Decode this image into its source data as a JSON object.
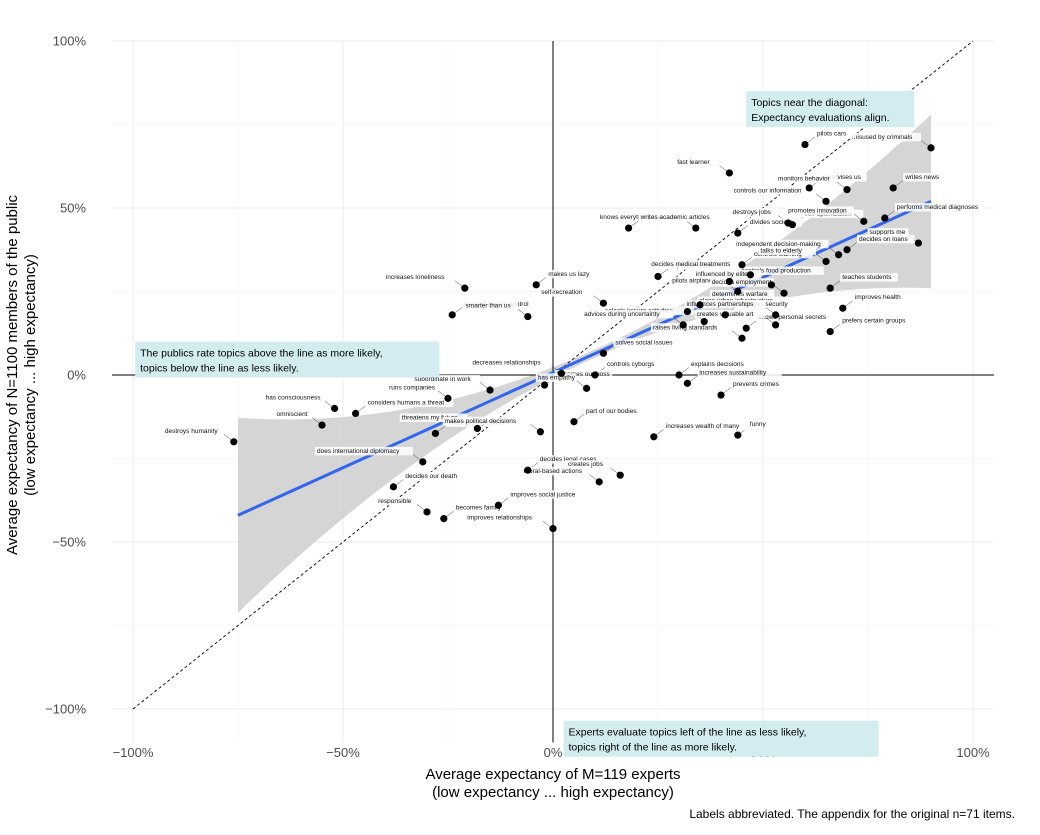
{
  "chart_data": {
    "type": "scatter",
    "xlabel": "Average expectancy of M=119 experts",
    "xlabel2": "(low expectancy ... high expectancy)",
    "ylabel": "Average expectancy of N=1100 members of the public",
    "ylabel2": "(low expectancy ... high expectancy)",
    "xlim": [
      -1.05,
      1.05
    ],
    "ylim": [
      -1.1,
      1.0
    ],
    "x_ticks": [
      {
        "v": -1.0,
        "label": "−100%"
      },
      {
        "v": -0.5,
        "label": "−50%"
      },
      {
        "v": 0.0,
        "label": "0%"
      },
      {
        "v": 0.5,
        "label": "50%"
      },
      {
        "v": 1.0,
        "label": "100%"
      }
    ],
    "y_ticks": [
      {
        "v": 1.0,
        "label": "100%"
      },
      {
        "v": 0.5,
        "label": "50%"
      },
      {
        "v": 0.0,
        "label": "0%"
      },
      {
        "v": -0.5,
        "label": "−50%"
      },
      {
        "v": -1.0,
        "label": "−100%"
      }
    ],
    "grid": true,
    "regression": {
      "x": [
        -0.75,
        0.9
      ],
      "y": [
        -0.42,
        0.52
      ],
      "color": "#3366ee",
      "band_color": "#d3d3d3"
    },
    "diagonal": {
      "from": [
        -1.0,
        -1.0
      ],
      "to": [
        1.0,
        1.0
      ]
    },
    "annotations": [
      {
        "x": 0.46,
        "y": 0.85,
        "lines": [
          "Topics near the diagonal:",
          "Expectancy evaluations align."
        ]
      },
      {
        "x": -0.995,
        "y": 0.1,
        "lines": [
          "The publics rate topics above the line as more likely,",
          "topics below the line as less likely."
        ]
      },
      {
        "x": 0.025,
        "y": -1.035,
        "lines": [
          "Experts evaluate topics left of the line as less likely,",
          "topics right of the line as more likely."
        ]
      }
    ],
    "caption": "Labels abbreviated. The appendix for the original n=71 items.",
    "points": [
      {
        "label": "misused by criminals",
        "x": 0.9,
        "y": 0.68
      },
      {
        "label": "pilots cars",
        "x": 0.6,
        "y": 0.69
      },
      {
        "label": "fast learner",
        "x": 0.42,
        "y": 0.605
      },
      {
        "label": "supervises us",
        "x": 0.61,
        "y": 0.56
      },
      {
        "label": "monitors behavior",
        "x": 0.7,
        "y": 0.555
      },
      {
        "label": "writes news",
        "x": 0.81,
        "y": 0.56
      },
      {
        "label": "controls our information",
        "x": 0.65,
        "y": 0.52
      },
      {
        "label": "performs medical diagnoses",
        "x": 0.79,
        "y": 0.47
      },
      {
        "label": "knows everything about me",
        "x": 0.34,
        "y": 0.44
      },
      {
        "label": "writes academic articles",
        "x": 0.18,
        "y": 0.44
      },
      {
        "label": "destroys jobs",
        "x": 0.56,
        "y": 0.455
      },
      {
        "label": "self-optimization",
        "x": 0.57,
        "y": 0.45
      },
      {
        "label": "promotes innovation",
        "x": 0.74,
        "y": 0.46
      },
      {
        "label": "divides society",
        "x": 0.44,
        "y": 0.425
      },
      {
        "label": "supports me",
        "x": 0.87,
        "y": 0.395
      },
      {
        "label": "decides on loans",
        "x": 0.7,
        "y": 0.375
      },
      {
        "label": "independent decision-making",
        "x": 0.68,
        "y": 0.36
      },
      {
        "label": "controls learning",
        "x": 0.45,
        "y": 0.33
      },
      {
        "label": "talks to elderly",
        "x": 0.65,
        "y": 0.34
      },
      {
        "label": "superior abilities",
        "x": 0.25,
        "y": 0.295
      },
      {
        "label": "decides medical treatments",
        "x": 0.47,
        "y": 0.3
      },
      {
        "label": "controls food production",
        "x": 0.42,
        "y": 0.28
      },
      {
        "label": "increases loneliness",
        "x": -0.21,
        "y": 0.26
      },
      {
        "label": "makes us lazy",
        "x": -0.04,
        "y": 0.27
      },
      {
        "label": "influenced by elite",
        "x": 0.52,
        "y": 0.27
      },
      {
        "label": "teaches students",
        "x": 0.66,
        "y": 0.26
      },
      {
        "label": "self-recreation",
        "x": 0.12,
        "y": 0.215
      },
      {
        "label": "determines warfare",
        "x": 0.35,
        "y": 0.21
      },
      {
        "label": "pilots airplanes",
        "x": 0.44,
        "y": 0.25
      },
      {
        "label": "plans urban infrastructure",
        "x": 0.32,
        "y": 0.19
      },
      {
        "label": "decides employment",
        "x": 0.55,
        "y": 0.245
      },
      {
        "label": "beyond human control",
        "x": -0.24,
        "y": 0.18
      },
      {
        "label": "smarter than us",
        "x": -0.06,
        "y": 0.175
      },
      {
        "label": "improves security",
        "x": 0.41,
        "y": 0.18
      },
      {
        "label": "influences partnerships",
        "x": 0.53,
        "y": 0.18
      },
      {
        "label": "improves health",
        "x": 0.69,
        "y": 0.2
      },
      {
        "label": "selects leisure activities",
        "x": 0.36,
        "y": 0.16
      },
      {
        "label": "knows personal secrets",
        "x": 0.46,
        "y": 0.14
      },
      {
        "label": "creates valuable art",
        "x": 0.53,
        "y": 0.15
      },
      {
        "label": "prefers certain groups",
        "x": 0.66,
        "y": 0.13
      },
      {
        "label": "advices during uncertainty",
        "x": 0.31,
        "y": 0.15
      },
      {
        "label": "solves social issues",
        "x": 0.12,
        "y": 0.065
      },
      {
        "label": "raises living standards",
        "x": 0.45,
        "y": 0.11
      },
      {
        "label": "controls cyborgs",
        "x": 0.1,
        "y": 0.0
      },
      {
        "label": "decreases relationships",
        "x": 0.02,
        "y": 0.005
      },
      {
        "label": "explains decisions",
        "x": 0.3,
        "y": 0.0
      },
      {
        "label": "subordinate in work",
        "x": -0.15,
        "y": -0.045
      },
      {
        "label": "becomes our boss",
        "x": -0.02,
        "y": -0.03
      },
      {
        "label": "has empathy",
        "x": 0.08,
        "y": -0.04
      },
      {
        "label": "increases sustainability",
        "x": 0.32,
        "y": -0.025
      },
      {
        "label": "has consciousness",
        "x": -0.52,
        "y": -0.1
      },
      {
        "label": "considers humans a threat",
        "x": -0.47,
        "y": -0.115
      },
      {
        "label": "runs companies",
        "x": -0.25,
        "y": -0.07
      },
      {
        "label": "prevents crimes",
        "x": 0.4,
        "y": -0.06
      },
      {
        "label": "omniscient",
        "x": -0.55,
        "y": -0.15
      },
      {
        "label": "part of our bodies",
        "x": 0.05,
        "y": -0.14
      },
      {
        "label": "threatens my future",
        "x": -0.18,
        "y": -0.16
      },
      {
        "label": "threatens my career",
        "x": -0.28,
        "y": -0.175
      },
      {
        "label": "makes political decisions",
        "x": -0.03,
        "y": -0.17
      },
      {
        "label": "funny",
        "x": 0.44,
        "y": -0.18
      },
      {
        "label": "destroys humanity",
        "x": -0.76,
        "y": -0.2
      },
      {
        "label": "increases wealth of many",
        "x": 0.24,
        "y": -0.185
      },
      {
        "label": "does international diplomacy",
        "x": -0.31,
        "y": -0.26
      },
      {
        "label": "decides legal cases",
        "x": -0.06,
        "y": -0.285
      },
      {
        "label": "creates jobs",
        "x": 0.16,
        "y": -0.3
      },
      {
        "label": "decides our death",
        "x": -0.38,
        "y": -0.335
      },
      {
        "label": "moral-based actions",
        "x": 0.11,
        "y": -0.32
      },
      {
        "label": "improves social justice",
        "x": -0.13,
        "y": -0.39
      },
      {
        "label": "responsible",
        "x": -0.3,
        "y": -0.41
      },
      {
        "label": "becomes family",
        "x": -0.26,
        "y": -0.43
      },
      {
        "label": "improves relationships",
        "x": -0.0,
        "y": -0.46
      }
    ]
  }
}
